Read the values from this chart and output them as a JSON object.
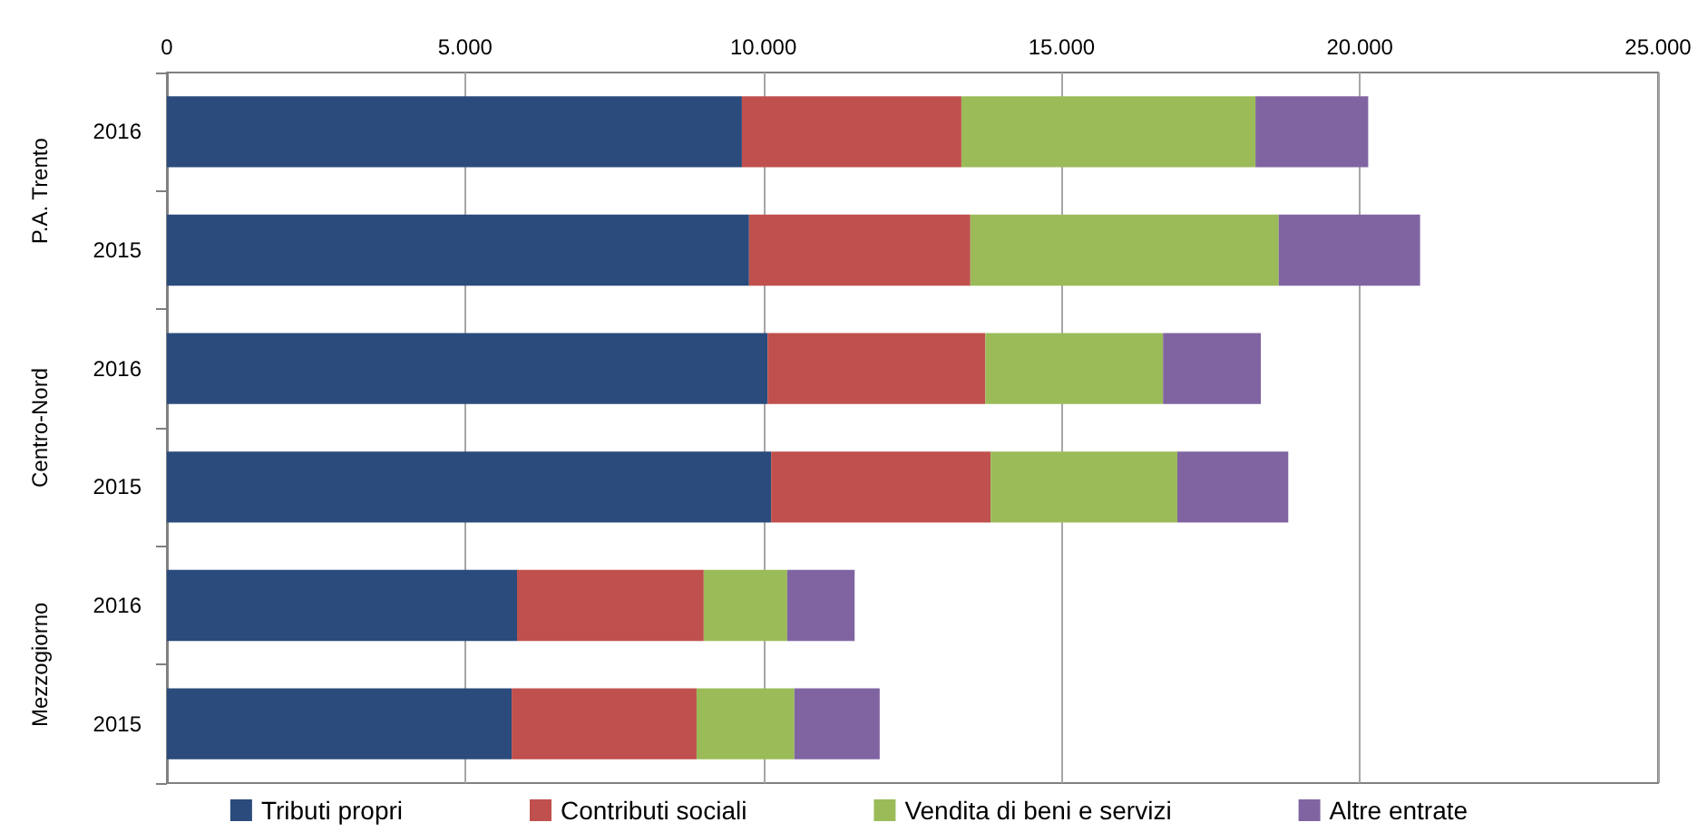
{
  "chart_data": {
    "type": "bar",
    "orientation": "horizontal",
    "stacked": true,
    "categories": [
      "2016",
      "2015",
      "2016",
      "2015",
      "2016",
      "2015"
    ],
    "annotations": [
      "P.A. Trento",
      "Centro-Nord",
      "Mezzogiorno"
    ],
    "series": [
      {
        "name": "Tributi propri",
        "color": "#2a4b7c",
        "values": [
          9640,
          9760,
          10070,
          10130,
          5870,
          5780
        ]
      },
      {
        "name": "Contributi sociali",
        "color": "#c0504d",
        "values": [
          3680,
          3710,
          3650,
          3680,
          3130,
          3100
        ]
      },
      {
        "name": "Vendita di beni e servizi",
        "color": "#9bbb59",
        "values": [
          4930,
          5170,
          2980,
          3130,
          1400,
          1640
        ]
      },
      {
        "name": "Altre entrate",
        "color": "#8064a2",
        "values": [
          1890,
          2370,
          1640,
          1860,
          1130,
          1430
        ]
      }
    ],
    "xlim": [
      0,
      25000
    ],
    "xticks": [
      0,
      {
        "value": 5000,
        "label": "5.000"
      },
      {
        "value": 10000,
        "label": "10.000"
      },
      {
        "value": 15000,
        "label": "15.000"
      },
      {
        "value": 20000,
        "label": "20.000"
      },
      {
        "value": 25000,
        "label": "25.000"
      }
    ],
    "grid": "x",
    "legend": "bottom"
  }
}
